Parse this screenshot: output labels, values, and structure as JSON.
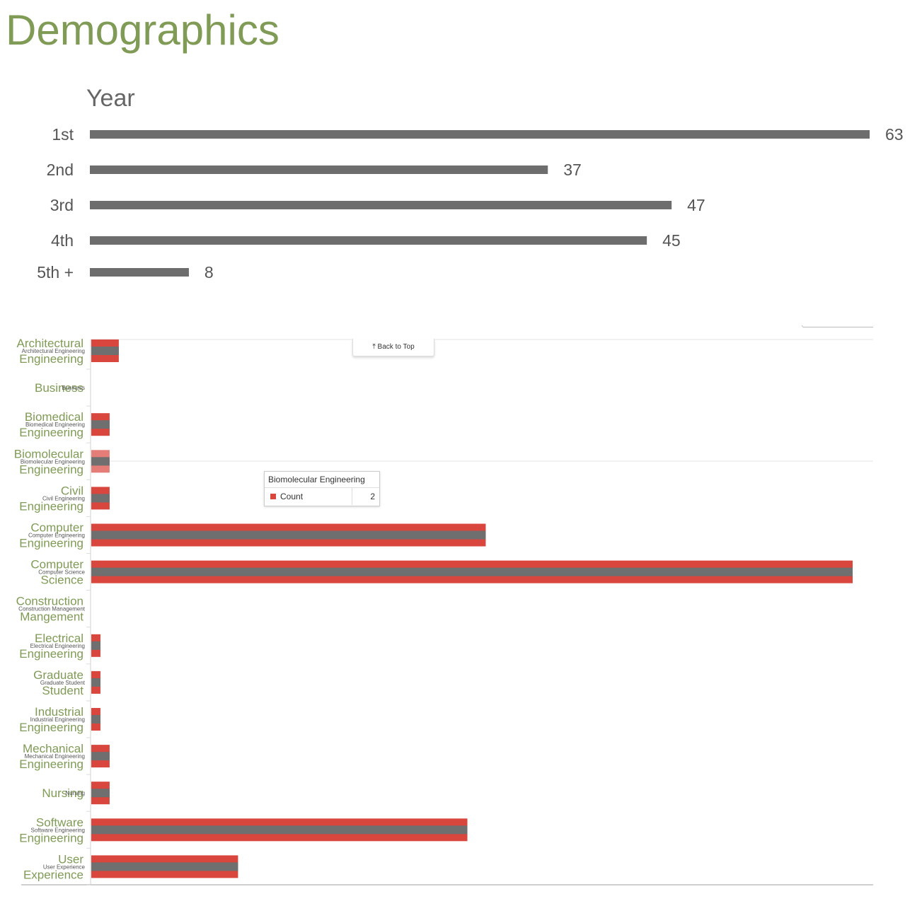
{
  "page": {
    "title": "Demographics"
  },
  "back_to_top": {
    "label": "⤒ Back to Top"
  },
  "tooltip": {
    "title": "Biomolecular Engineering",
    "series": "Count",
    "value": "2"
  },
  "colors": {
    "title": "#7f9b55",
    "year_bar": "#6d6d6d",
    "major_bar": "#d9463d",
    "major_inner": "#6f6f6f"
  },
  "chart_data": [
    {
      "type": "bar",
      "orientation": "horizontal",
      "title": "Year",
      "categories": [
        "1st",
        "2nd",
        "3rd",
        "4th",
        "5th +"
      ],
      "values": [
        63,
        37,
        47,
        45,
        8
      ],
      "data_labels": [
        "63",
        "37",
        "47",
        "45",
        "8"
      ],
      "xlim": [
        0,
        63
      ],
      "grid": false
    },
    {
      "type": "bar",
      "orientation": "horizontal",
      "categories": [
        "Architectural Engineering",
        "Business",
        "Biomedical Engineering",
        "Biomolecular Engineering",
        "Civil Engineering",
        "Computer Engineering",
        "Computer Science",
        "Construction Mangement",
        "Electrical Engineering",
        "Graduate Student",
        "Industrial Engineering",
        "Mechanical Engineering",
        "Nursing",
        "Software Engineering",
        "User Experience"
      ],
      "small_labels": [
        "Architectural Engineering",
        "Business",
        "Biomedical Engineering",
        "Biomolecular Engineering",
        "Civil Engineering",
        "Computer Engineering",
        "Computer Science",
        "Construction Management",
        "Electrical Engineering",
        "Graduate Student",
        "Industrial Engineering",
        "Mechanical Engineering",
        "Nursing",
        "Software Engineering",
        "User Experience"
      ],
      "series": [
        {
          "name": "Count",
          "values": [
            3,
            0,
            2,
            2,
            2,
            43,
            83,
            0,
            1,
            1,
            1,
            2,
            2,
            41,
            16
          ]
        }
      ],
      "highlighted_category": "Biomolecular Engineering",
      "grid": false
    }
  ]
}
